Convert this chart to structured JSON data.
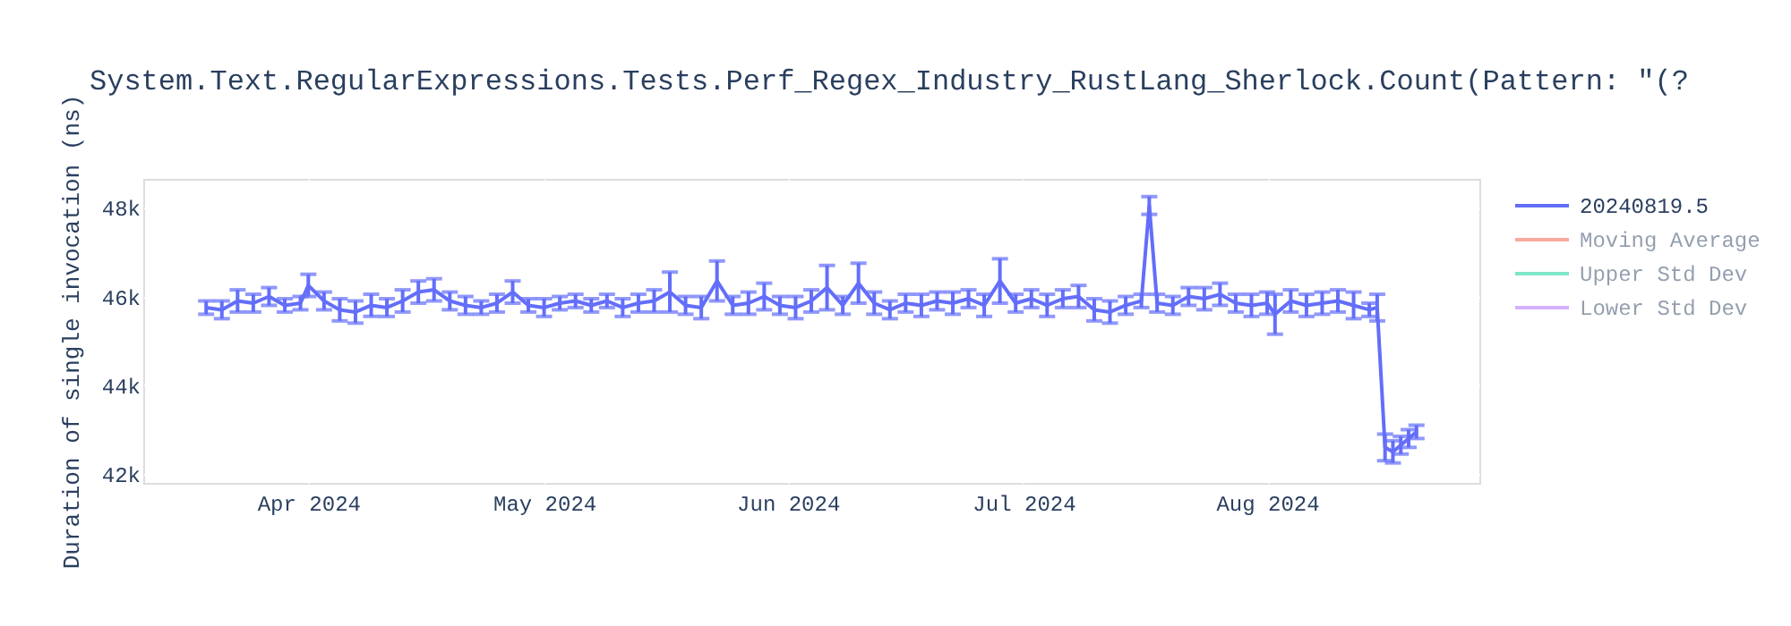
{
  "chart_data": {
    "type": "line",
    "title": "System.Text.RegularExpressions.Tests.Perf_Regex_Industry_RustLang_Sherlock.Count(Pattern: \"(?",
    "ylabel": "Duration of single invocation (ns)",
    "x": [
      "2024-03-19",
      "2024-03-21",
      "2024-03-23",
      "2024-03-25",
      "2024-03-27",
      "2024-03-29",
      "2024-03-31",
      "2024-04-01",
      "2024-04-03",
      "2024-04-05",
      "2024-04-07",
      "2024-04-09",
      "2024-04-11",
      "2024-04-13",
      "2024-04-15",
      "2024-04-17",
      "2024-04-19",
      "2024-04-21",
      "2024-04-23",
      "2024-04-25",
      "2024-04-27",
      "2024-04-29",
      "2024-05-01",
      "2024-05-03",
      "2024-05-05",
      "2024-05-07",
      "2024-05-09",
      "2024-05-11",
      "2024-05-13",
      "2024-05-15",
      "2024-05-17",
      "2024-05-19",
      "2024-05-21",
      "2024-05-23",
      "2024-05-25",
      "2024-05-27",
      "2024-05-29",
      "2024-05-31",
      "2024-06-02",
      "2024-06-04",
      "2024-06-06",
      "2024-06-08",
      "2024-06-10",
      "2024-06-12",
      "2024-06-14",
      "2024-06-16",
      "2024-06-18",
      "2024-06-20",
      "2024-06-22",
      "2024-06-24",
      "2024-06-26",
      "2024-06-28",
      "2024-06-30",
      "2024-07-02",
      "2024-07-04",
      "2024-07-06",
      "2024-07-08",
      "2024-07-10",
      "2024-07-12",
      "2024-07-14",
      "2024-07-16",
      "2024-07-17",
      "2024-07-18",
      "2024-07-20",
      "2024-07-22",
      "2024-07-24",
      "2024-07-26",
      "2024-07-28",
      "2024-07-30",
      "2024-08-01",
      "2024-08-02",
      "2024-08-04",
      "2024-08-06",
      "2024-08-08",
      "2024-08-10",
      "2024-08-12",
      "2024-08-14",
      "2024-08-15",
      "2024-08-16",
      "2024-08-17",
      "2024-08-18",
      "2024-08-19",
      "2024-08-20"
    ],
    "series": [
      {
        "name": "20240819.5",
        "color": "#636efa",
        "values": [
          45750,
          45700,
          45900,
          45850,
          46000,
          45800,
          45850,
          46250,
          45900,
          45700,
          45650,
          45800,
          45750,
          45900,
          46100,
          46150,
          45900,
          45800,
          45750,
          45850,
          46100,
          45800,
          45750,
          45850,
          45900,
          45800,
          45900,
          45750,
          45850,
          45900,
          46100,
          45800,
          45750,
          46350,
          45800,
          45850,
          46000,
          45800,
          45750,
          45900,
          46200,
          45800,
          46300,
          45850,
          45700,
          45850,
          45800,
          45900,
          45850,
          45950,
          45800,
          46350,
          45850,
          45950,
          45800,
          45950,
          46000,
          45700,
          45650,
          45800,
          45900,
          48050,
          45850,
          45800,
          46000,
          45950,
          46050,
          45850,
          45800,
          45850,
          45600,
          45900,
          45800,
          45850,
          45900,
          45800,
          45700,
          45750,
          42600,
          42500,
          42650,
          42800,
          42950
        ],
        "errors": [
          150,
          200,
          250,
          200,
          200,
          150,
          150,
          250,
          200,
          250,
          250,
          250,
          200,
          250,
          250,
          250,
          200,
          200,
          150,
          200,
          250,
          150,
          200,
          150,
          150,
          150,
          150,
          200,
          200,
          250,
          450,
          200,
          250,
          450,
          200,
          250,
          300,
          200,
          250,
          250,
          500,
          200,
          450,
          250,
          200,
          200,
          250,
          200,
          250,
          200,
          250,
          500,
          200,
          200,
          250,
          200,
          250,
          250,
          250,
          200,
          150,
          200,
          200,
          200,
          200,
          250,
          250,
          200,
          250,
          250,
          450,
          250,
          250,
          250,
          250,
          300,
          150,
          300,
          300,
          250,
          200,
          200,
          150
        ]
      },
      {
        "name": "Moving Average",
        "color": "#ef553b",
        "values": [
          null,
          null,
          null,
          null,
          null,
          null,
          null,
          null,
          null,
          null,
          null,
          null,
          null,
          null,
          null,
          null,
          null,
          null,
          null,
          null,
          null,
          null,
          null,
          null,
          null,
          null,
          null,
          null,
          null,
          null,
          null,
          null,
          null,
          null,
          null,
          null,
          null,
          null,
          null,
          null,
          null,
          null,
          null,
          null,
          null,
          null,
          null,
          null,
          null,
          null,
          null,
          null,
          null,
          null,
          null,
          null,
          null,
          null,
          null,
          null,
          null,
          null,
          null,
          null,
          null,
          null,
          null,
          null,
          null,
          null,
          null,
          null,
          null,
          null,
          null,
          null,
          null,
          null,
          null,
          null,
          null,
          null,
          null
        ]
      },
      {
        "name": "Upper Std Dev",
        "color": "#00cc96",
        "values": [
          null,
          null,
          null,
          null,
          null,
          null,
          null,
          null,
          null,
          null,
          null,
          null,
          null,
          null,
          null,
          null,
          null,
          null,
          null,
          null,
          null,
          null,
          null,
          null,
          null,
          null,
          null,
          null,
          null,
          null,
          null,
          null,
          null,
          null,
          null,
          null,
          null,
          null,
          null,
          null,
          null,
          null,
          null,
          null,
          null,
          null,
          null,
          null,
          null,
          null,
          null,
          null,
          null,
          null,
          null,
          null,
          null,
          null,
          null,
          null,
          null,
          null,
          null,
          null,
          null,
          null,
          null,
          null,
          null,
          null,
          null,
          null,
          null,
          null,
          null,
          null,
          null,
          null,
          null,
          null,
          null,
          null,
          null
        ]
      },
      {
        "name": "Lower Std Dev",
        "color": "#ab63fa",
        "values": [
          null,
          null,
          null,
          null,
          null,
          null,
          null,
          null,
          null,
          null,
          null,
          null,
          null,
          null,
          null,
          null,
          null,
          null,
          null,
          null,
          null,
          null,
          null,
          null,
          null,
          null,
          null,
          null,
          null,
          null,
          null,
          null,
          null,
          null,
          null,
          null,
          null,
          null,
          null,
          null,
          null,
          null,
          null,
          null,
          null,
          null,
          null,
          null,
          null,
          null,
          null,
          null,
          null,
          null,
          null,
          null,
          null,
          null,
          null,
          null,
          null,
          null,
          null,
          null,
          null,
          null,
          null,
          null,
          null,
          null,
          null,
          null,
          null,
          null,
          null,
          null,
          null,
          null,
          null,
          null,
          null,
          null,
          null
        ]
      }
    ],
    "xlim": [
      "2024-03-11",
      "2024-08-28"
    ],
    "xticks": [
      {
        "value": "2024-04-01",
        "label": "Apr 2024"
      },
      {
        "value": "2024-05-01",
        "label": "May 2024"
      },
      {
        "value": "2024-06-01",
        "label": "Jun 2024"
      },
      {
        "value": "2024-07-01",
        "label": "Jul 2024"
      },
      {
        "value": "2024-08-01",
        "label": "Aug 2024"
      }
    ],
    "ylim": [
      41800,
      48650
    ],
    "yticks": [
      {
        "value": 42000,
        "label": "42k"
      },
      {
        "value": 44000,
        "label": "44k"
      },
      {
        "value": 46000,
        "label": "46k"
      },
      {
        "value": 48000,
        "label": "48k"
      }
    ],
    "grid": true,
    "legend": "right",
    "marker": "none",
    "line_style": "solid"
  }
}
